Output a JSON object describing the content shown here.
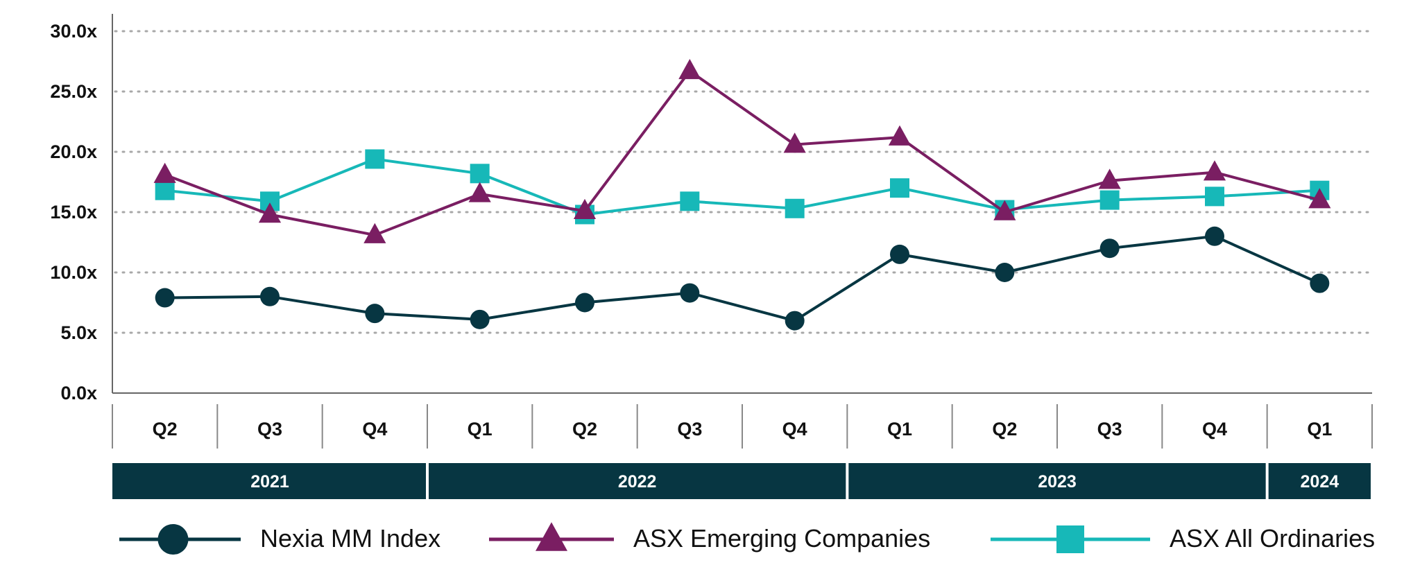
{
  "chart_data": {
    "type": "line",
    "categories": [
      "Q2",
      "Q3",
      "Q4",
      "Q1",
      "Q2",
      "Q3",
      "Q4",
      "Q1",
      "Q2",
      "Q3",
      "Q4",
      "Q1"
    ],
    "years": [
      {
        "label": "2021",
        "quarters": 3
      },
      {
        "label": "2022",
        "quarters": 4
      },
      {
        "label": "2023",
        "quarters": 4
      },
      {
        "label": "2024",
        "quarters": 1
      }
    ],
    "yticks": [
      "0.0x",
      "5.0x",
      "10.0x",
      "15.0x",
      "20.0x",
      "25.0x",
      "30.0x"
    ],
    "ylim": [
      0,
      30
    ],
    "grid": true,
    "legend_position": "bottom",
    "series": [
      {
        "name": "Nexia MM Index",
        "marker": "circle",
        "color": "#073642",
        "values": [
          7.9,
          8.0,
          6.6,
          6.1,
          7.5,
          8.3,
          6.0,
          11.5,
          10.0,
          12.0,
          13.0,
          9.1
        ]
      },
      {
        "name": "ASX Emerging Companies",
        "marker": "triangle",
        "color": "#7a1e62",
        "values": [
          18.1,
          14.8,
          13.1,
          16.5,
          15.1,
          26.7,
          20.6,
          21.2,
          15.0,
          17.6,
          18.3,
          16.0
        ]
      },
      {
        "name": "ASX All Ordinaries",
        "marker": "square",
        "color": "#17b8b8",
        "values": [
          16.8,
          15.9,
          19.4,
          18.2,
          14.8,
          15.9,
          15.3,
          17.0,
          15.2,
          16.0,
          16.3,
          16.8
        ]
      }
    ]
  }
}
